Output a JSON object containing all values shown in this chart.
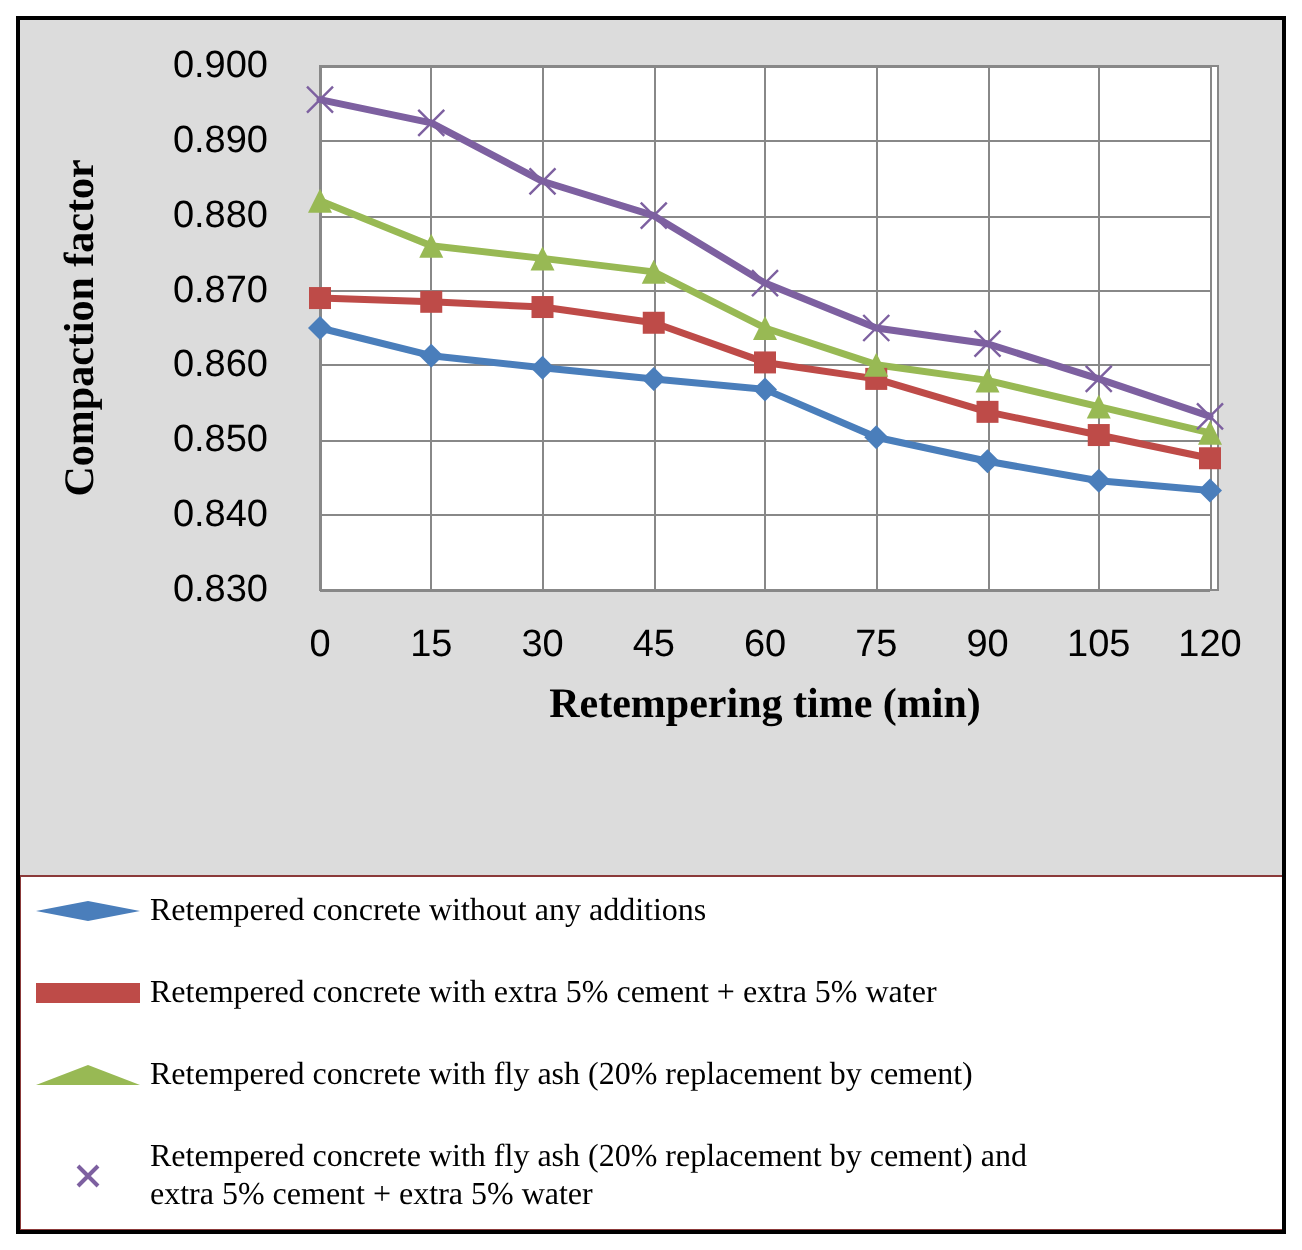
{
  "chart_data": {
    "type": "line",
    "xlabel": "Retempering time (min)",
    "ylabel": "Compaction factor",
    "categories": [
      "0",
      "15",
      "30",
      "45",
      "60",
      "75",
      "90",
      "105",
      "120"
    ],
    "series": [
      {
        "name": "Retempered concrete without any additions",
        "color": "#4a7ebb",
        "marker": "diamond",
        "values": [
          0.865,
          0.8613,
          0.8597,
          0.8582,
          0.8568,
          0.8504,
          0.8472,
          0.8446,
          0.8433
        ]
      },
      {
        "name": "Retempered concrete with extra 5% cement + extra 5% water",
        "color": "#be4b48",
        "marker": "square",
        "values": [
          0.869,
          0.8685,
          0.8678,
          0.8657,
          0.8604,
          0.8582,
          0.8538,
          0.8507,
          0.8476
        ]
      },
      {
        "name": "Retempered concrete with fly ash (20% replacement by cement)",
        "color": "#98b954",
        "marker": "triangle",
        "values": [
          0.882,
          0.876,
          0.8743,
          0.8725,
          0.865,
          0.8601,
          0.858,
          0.8545,
          0.851
        ]
      },
      {
        "name": "Retempered concrete with fly ash (20% replacement by cement) and  extra 5% cement + extra 5% water",
        "color": "#7d60a0",
        "marker": "cross",
        "values": [
          0.8955,
          0.8924,
          0.8846,
          0.88,
          0.871,
          0.865,
          0.8629,
          0.8582,
          0.8532
        ]
      }
    ],
    "ylim": [
      0.83,
      0.9
    ],
    "yticks": [
      {
        "value": 0.83,
        "label": "0.830"
      },
      {
        "value": 0.84,
        "label": "0.840"
      },
      {
        "value": 0.85,
        "label": "0.850"
      },
      {
        "value": 0.86,
        "label": "0.860"
      },
      {
        "value": 0.87,
        "label": "0.870"
      },
      {
        "value": 0.88,
        "label": "0.880"
      },
      {
        "value": 0.89,
        "label": "0.890"
      },
      {
        "value": 0.9,
        "label": "0.900"
      }
    ],
    "grid": true,
    "legend": "bottom",
    "line_style": "solid"
  }
}
